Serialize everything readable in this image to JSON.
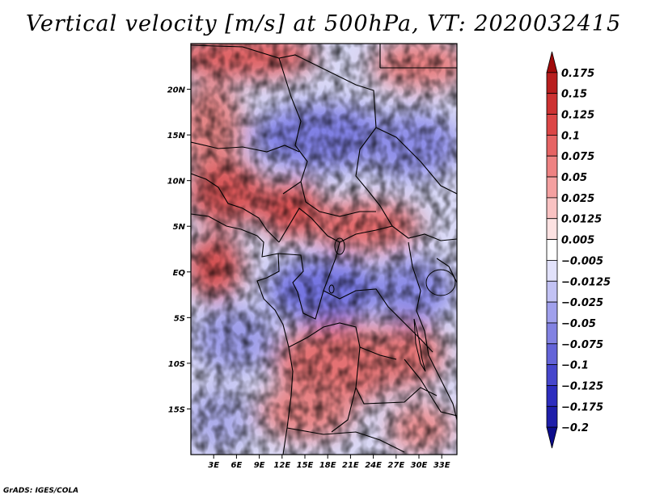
{
  "title": "Vertical velocity [m/s] at 500hPa, VT: 2020032415",
  "credit": "GrADS: IGES/COLA",
  "map": {
    "lat_range": [
      -20,
      25
    ],
    "lon_range": [
      0,
      35
    ],
    "lat_ticks": [
      {
        "value": 20,
        "label": "20N"
      },
      {
        "value": 15,
        "label": "15N"
      },
      {
        "value": 10,
        "label": "10N"
      },
      {
        "value": 5,
        "label": "5N"
      },
      {
        "value": 0,
        "label": "EQ"
      },
      {
        "value": -5,
        "label": "5S"
      },
      {
        "value": -10,
        "label": "10S"
      },
      {
        "value": -15,
        "label": "15S"
      }
    ],
    "lon_ticks": [
      {
        "value": 3,
        "label": "3E"
      },
      {
        "value": 6,
        "label": "6E"
      },
      {
        "value": 9,
        "label": "9E"
      },
      {
        "value": 12,
        "label": "12E"
      },
      {
        "value": 15,
        "label": "15E"
      },
      {
        "value": 18,
        "label": "18E"
      },
      {
        "value": 21,
        "label": "21E"
      },
      {
        "value": 24,
        "label": "24E"
      },
      {
        "value": 27,
        "label": "27E"
      },
      {
        "value": 30,
        "label": "30E"
      },
      {
        "value": 33,
        "label": "33E"
      }
    ],
    "colors": {
      "upward_strong": "#a50f15",
      "upward": "#e46a6a",
      "neutral": "#ffffff",
      "downward": "#7f7fe0",
      "downward_strong": "#1f1fa0",
      "boundaries": "#000000"
    }
  },
  "colorbar": {
    "labels": [
      "0.175",
      "0.15",
      "0.125",
      "0.1",
      "0.075",
      "0.05",
      "0.025",
      "0.0125",
      "0.005",
      "-0.005",
      "-0.0125",
      "-0.025",
      "-0.05",
      "-0.075",
      "-0.1",
      "-0.125",
      "-0.175",
      "-0.2"
    ],
    "colors": [
      "#a00a0a",
      "#b81e1e",
      "#cd3232",
      "#dc4646",
      "#e66464",
      "#ee8282",
      "#f4a0a0",
      "#f9c2c2",
      "#fde2e2",
      "#ffffff",
      "#e2e2fb",
      "#c2c2f4",
      "#a0a0ec",
      "#8282e2",
      "#6464d8",
      "#4646cc",
      "#2d2dbe",
      "#1e1eaa",
      "#0c0c8c"
    ]
  }
}
